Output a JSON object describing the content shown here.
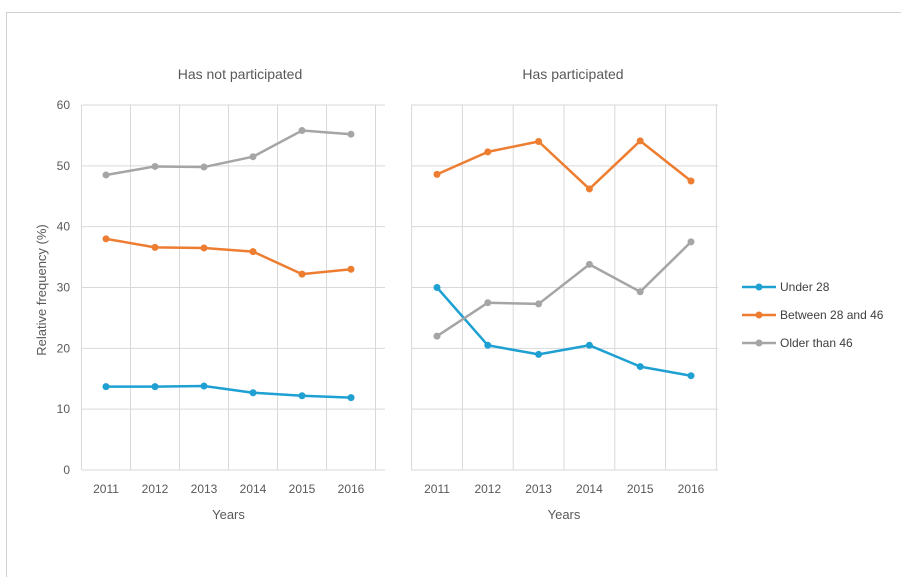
{
  "chart_data": {
    "type": "line",
    "categories": [
      "2011",
      "2012",
      "2013",
      "2014",
      "2015",
      "2016"
    ],
    "ylabel": "Relative frequency (%)",
    "ylim": [
      0,
      60
    ],
    "yticks": [
      "0",
      "10",
      "20",
      "30",
      "40",
      "50",
      "60"
    ],
    "grid": true,
    "legend_position": "right",
    "panels": [
      {
        "title": "Has not participated",
        "xlabel": "Years",
        "series": [
          {
            "name": "Under 28",
            "color": "#1fa0d2",
            "values": [
              13.7,
              13.7,
              13.8,
              12.7,
              12.2,
              11.9
            ]
          },
          {
            "name": "Between 28 and 46",
            "color": "#ed7d31",
            "values": [
              38.0,
              36.6,
              36.5,
              35.9,
              32.2,
              33.0
            ]
          },
          {
            "name": "Older than 46",
            "color": "#a5a5a5",
            "values": [
              48.5,
              49.9,
              49.8,
              51.5,
              55.8,
              55.2
            ]
          }
        ]
      },
      {
        "title": "Has participated",
        "xlabel": "Years",
        "series": [
          {
            "name": "Under 28",
            "color": "#1fa0d2",
            "values": [
              30.0,
              20.5,
              19.0,
              20.5,
              17.0,
              15.5
            ]
          },
          {
            "name": "Between 28 and 46",
            "color": "#ed7d31",
            "values": [
              48.6,
              52.3,
              54.0,
              46.2,
              54.1,
              47.5
            ]
          },
          {
            "name": "Older than 46",
            "color": "#a5a5a5",
            "values": [
              22.0,
              27.5,
              27.3,
              33.8,
              29.3,
              37.5
            ]
          }
        ]
      }
    ],
    "legend": [
      {
        "label": "Under 28",
        "color": "#1fa0d2"
      },
      {
        "label": "Between 28 and 46",
        "color": "#ed7d31"
      },
      {
        "label": "Older than 46",
        "color": "#a5a5a5"
      }
    ]
  }
}
